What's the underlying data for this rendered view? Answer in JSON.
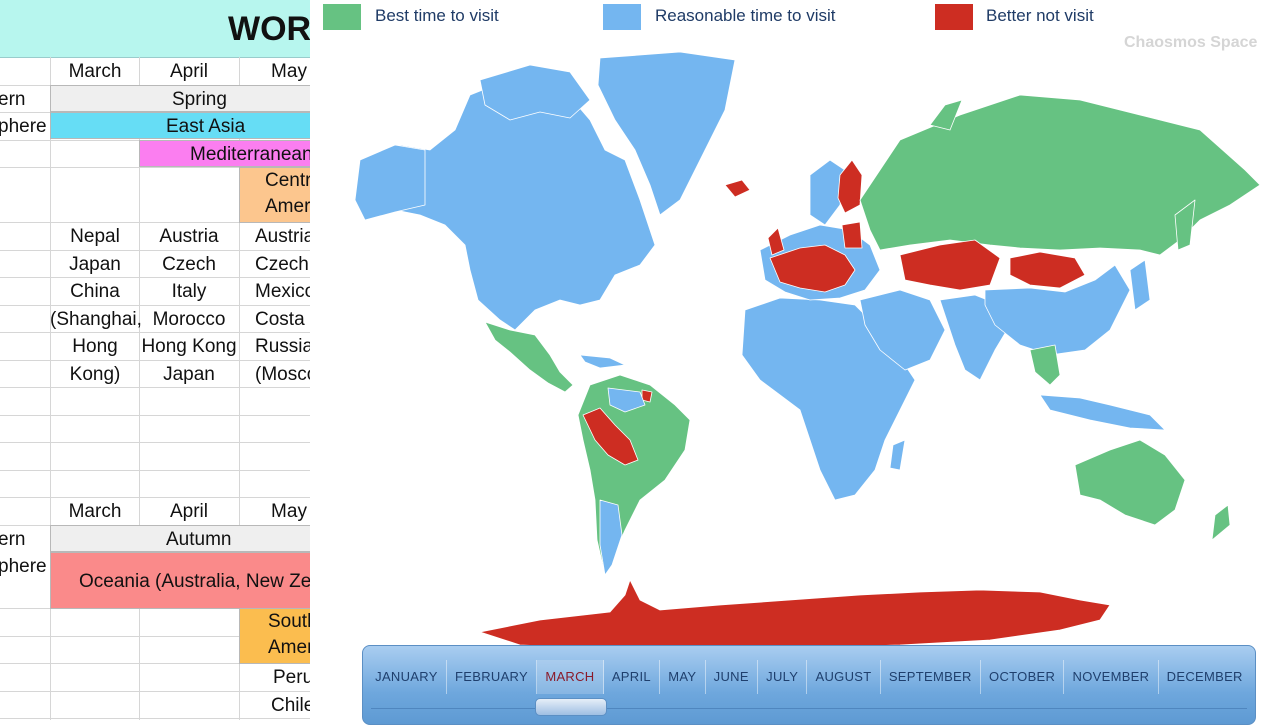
{
  "sheet": {
    "title": "WORL",
    "north": {
      "months": [
        "March",
        "April",
        "May"
      ],
      "region_labels": [
        "ern",
        "phere"
      ],
      "season": "Spring",
      "band_east_asia": "East Asia",
      "band_mediterranean": "Mediterranean Se",
      "band_central": [
        "Centra",
        "Americ"
      ],
      "col_march": [
        "Nepal",
        "Japan",
        "China",
        "(Shanghai,",
        "Hong",
        "Kong)"
      ],
      "col_april": [
        "Austria",
        "Czech",
        "Italy",
        "Morocco",
        "Hong Kong",
        "Japan"
      ],
      "col_may": [
        "Austria",
        "Czech",
        "Mexico",
        "Costa Ri",
        "Russia",
        "(Moscow"
      ]
    },
    "south": {
      "months": [
        "March",
        "April",
        "May"
      ],
      "region_labels": [
        "ern",
        "phere"
      ],
      "season": "Autumn",
      "band_oceania": "Oceania (Australia, New Zealand)",
      "band_south": [
        "South",
        "Americ"
      ],
      "col_may": [
        "Peru",
        "Chile"
      ]
    },
    "colors": {
      "title_bg": "#b7f6ee",
      "east_asia": "#66ddf5",
      "mediterranean": "#fb7ef0",
      "central_america": "#fcc68e",
      "oceania": "#fa8a8a",
      "south_america": "#fbbd4f"
    }
  },
  "legend": [
    {
      "label": "Best time to visit",
      "color": "#66c282"
    },
    {
      "label": "Reasonable time to visit",
      "color": "#74b6f0"
    },
    {
      "label": "Better not visit",
      "color": "#cd2d22"
    }
  ],
  "watermark": "Chaosmos Space",
  "months": [
    "JANUARY",
    "FEBRUARY",
    "MARCH",
    "APRIL",
    "MAY",
    "JUNE",
    "JULY",
    "AUGUST",
    "SEPTEMBER",
    "OCTOBER",
    "NOVEMBER",
    "DECEMBER"
  ],
  "selected_month": "MARCH",
  "map_colors": {
    "best": "#66c282",
    "reasonable": "#74b6f0",
    "avoid": "#cd2d22",
    "border": "#ffffff"
  }
}
